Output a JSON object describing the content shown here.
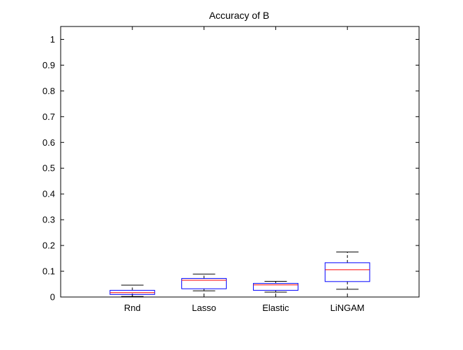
{
  "chart_data": {
    "type": "box",
    "title": "Accuracy of B",
    "xlabel": "",
    "ylabel": "",
    "ylim": [
      0,
      1.05
    ],
    "yticks": [
      0,
      0.1,
      0.2,
      0.3,
      0.4,
      0.5,
      0.6,
      0.7,
      0.8,
      0.9,
      1
    ],
    "ytick_labels": [
      "0",
      "0.1",
      "0.2",
      "0.3",
      "0.4",
      "0.5",
      "0.6",
      "0.7",
      "0.8",
      "0.9",
      "1"
    ],
    "categories": [
      "Rnd",
      "Lasso",
      "Elastic",
      "LiNGAM"
    ],
    "boxes": [
      {
        "category": "Rnd",
        "whisker_low": 0.002,
        "q1": 0.01,
        "median": 0.017,
        "q3": 0.026,
        "whisker_high": 0.046
      },
      {
        "category": "Lasso",
        "whisker_low": 0.024,
        "q1": 0.032,
        "median": 0.065,
        "q3": 0.072,
        "whisker_high": 0.089
      },
      {
        "category": "Elastic",
        "whisker_low": 0.019,
        "q1": 0.026,
        "median": 0.047,
        "q3": 0.053,
        "whisker_high": 0.061
      },
      {
        "category": "LiNGAM",
        "whisker_low": 0.03,
        "q1": 0.06,
        "median": 0.106,
        "q3": 0.133,
        "whisker_high": 0.175
      }
    ],
    "colors": {
      "box": "#0000ff",
      "median": "#ff0000",
      "whisker": "#000000",
      "axes": "#000000"
    },
    "grid": false
  }
}
